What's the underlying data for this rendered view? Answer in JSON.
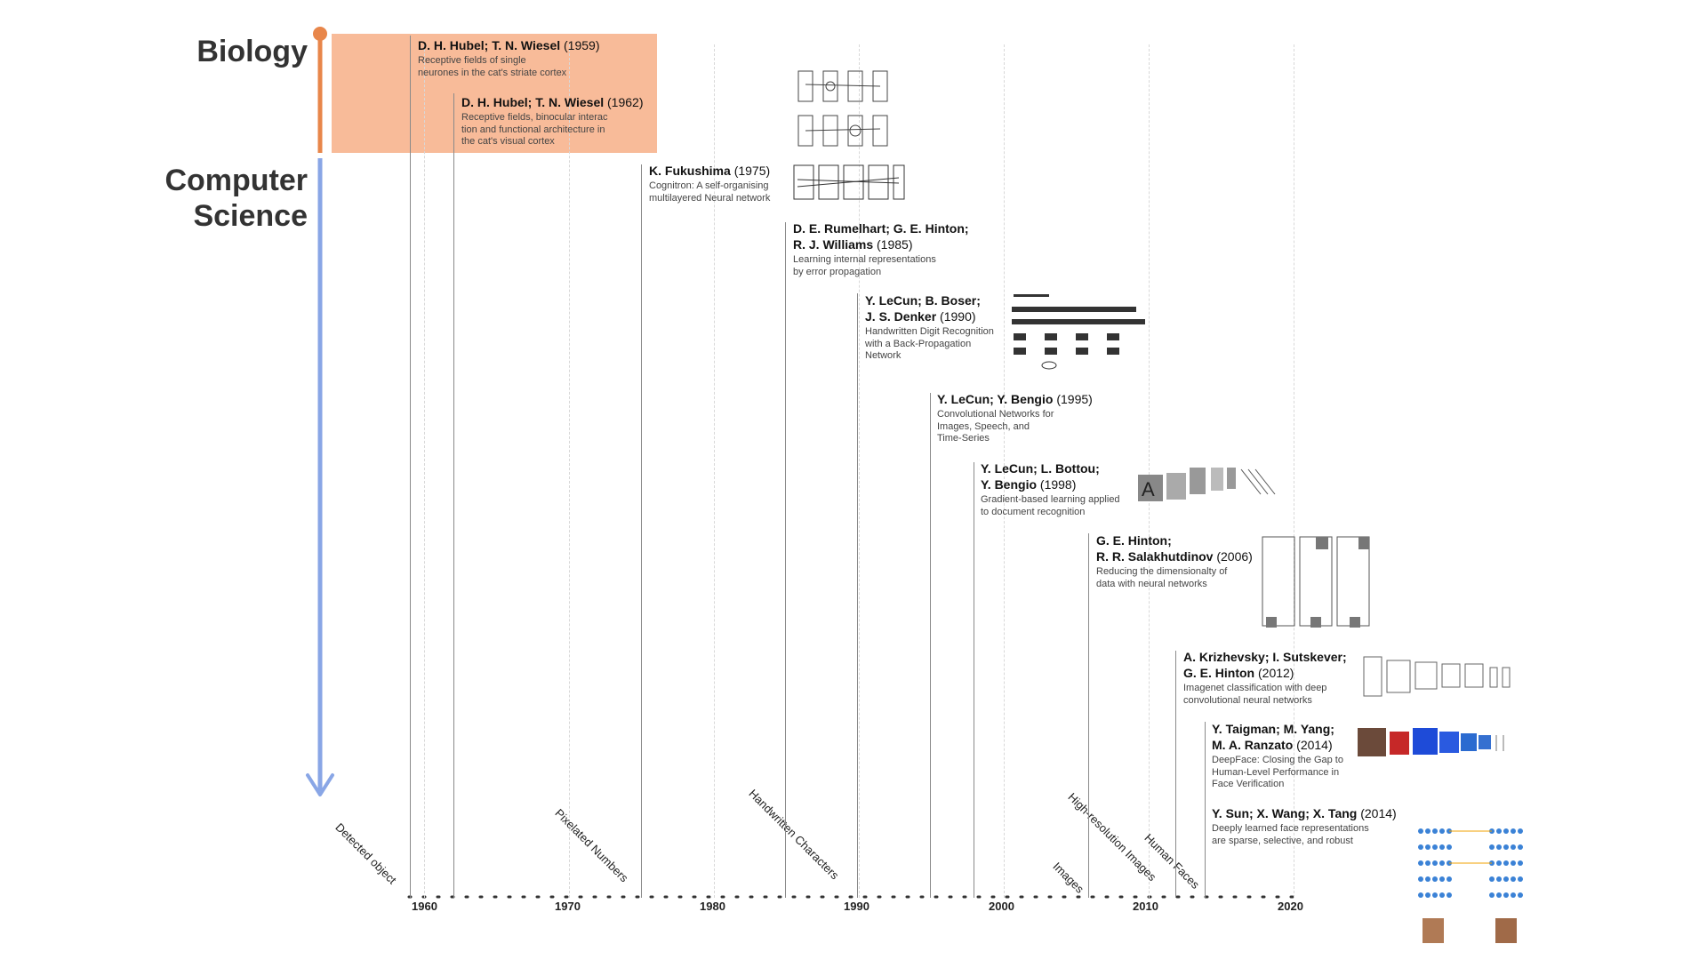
{
  "sections": {
    "biology": "Biology",
    "computer_science_line1": "Computer",
    "computer_science_line2": "Science"
  },
  "colors": {
    "biology_band": "#f8bb99",
    "biology_axis": "#e8864a",
    "cs_axis": "#89a6e6",
    "timeline_line": "#8a8a8a"
  },
  "axis": {
    "ticks": [
      "1960",
      "1970",
      "1980",
      "1990",
      "2000",
      "2010",
      "2020"
    ]
  },
  "categories": [
    {
      "label": "Detected object"
    },
    {
      "label": "Pixelated Numbers"
    },
    {
      "label": "Handwritten Characters"
    },
    {
      "label": "Images"
    },
    {
      "label": "High-resolution Images"
    },
    {
      "label": "Human Faces"
    }
  ],
  "entries": [
    {
      "authors": "D. H. Hubel; T. N. Wiesel",
      "year": "(1959)",
      "desc": [
        "Receptive fields of single",
        "neurones in the cat's striate cortex"
      ]
    },
    {
      "authors": "D. H. Hubel; T. N. Wiesel",
      "year": "(1962)",
      "desc": [
        "Receptive fields, binocular interac",
        "tion and functional architecture in",
        "the cat's visual cortex"
      ]
    },
    {
      "authors": "K. Fukushima",
      "year": "(1975)",
      "desc": [
        "Cognitron: A self-organising",
        "multilayered Neural network"
      ]
    },
    {
      "authors1": "D. E. Rumelhart; G. E. Hinton;",
      "authors2": "R. J. Williams",
      "year": "(1985)",
      "desc": [
        "Learning internal representations",
        "by error propagation"
      ]
    },
    {
      "authors1": "Y. LeCun; B. Boser;",
      "authors2": "J. S. Denker",
      "year": "(1990)",
      "desc": [
        "Handwritten Digit Recognition",
        "with a Back-Propagation",
        "Network"
      ]
    },
    {
      "authors": "Y. LeCun; Y. Bengio",
      "year": "(1995)",
      "desc": [
        "Convolutional Networks for",
        "Images, Speech, and",
        "Time-Series"
      ]
    },
    {
      "authors1": "Y. LeCun; L. Bottou;",
      "authors2": "Y. Bengio",
      "year": "(1998)",
      "desc": [
        "Gradient-based learning applied",
        "to document recognition"
      ]
    },
    {
      "authors1": "G. E. Hinton;",
      "authors2": "R. R. Salakhutdinov",
      "year": "(2006)",
      "desc": [
        "Reducing the dimensionalty of",
        "data with neural networks"
      ]
    },
    {
      "authors1": "A. Krizhevsky; I. Sutskever;",
      "authors2": "G. E. Hinton",
      "year": "(2012)",
      "desc": [
        "Imagenet classification with deep",
        "convolutional neural networks"
      ]
    },
    {
      "authors1": "Y. Taigman; M. Yang;",
      "authors2": "M. A. Ranzato",
      "year": "(2014)",
      "desc": [
        "DeepFace: Closing the Gap to",
        "Human-Level Performance in",
        "Face Verification"
      ]
    },
    {
      "authors": "Y. Sun; X. Wang; X. Tang",
      "year": "(2014)",
      "desc": [
        "Deeply learned face representations",
        "are sparse, selective, and robust"
      ]
    }
  ]
}
